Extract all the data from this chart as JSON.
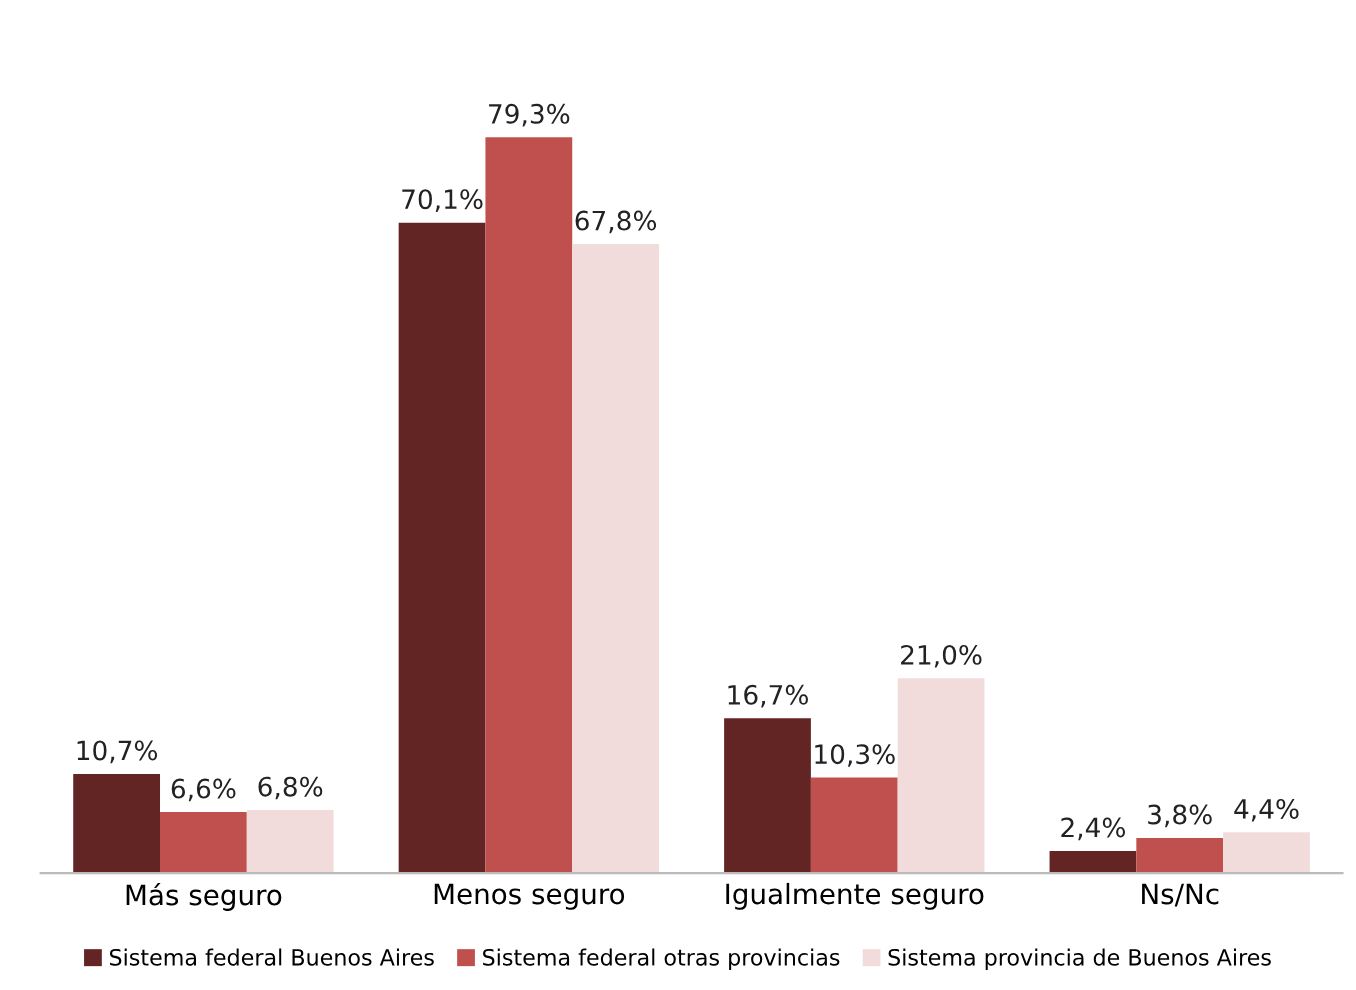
{
  "chart_data": {
    "type": "bar",
    "categories": [
      "Más seguro",
      "Menos seguro",
      "Igualmente seguro",
      "Ns/Nc"
    ],
    "series": [
      {
        "name": "Sistema federal Buenos Aires",
        "color": "#632523",
        "values": [
          10.7,
          70.1,
          16.7,
          2.4
        ],
        "value_labels": [
          "10,7%",
          "70,1%",
          "16,7%",
          "2,4%"
        ]
      },
      {
        "name": "Sistema federal otras provincias",
        "color": "#c0504d",
        "values": [
          6.6,
          79.3,
          10.3,
          3.8
        ],
        "value_labels": [
          "6,6%",
          "79,3%",
          "10,3%",
          "3,8%"
        ]
      },
      {
        "name": "Sistema provincia de Buenos Aires",
        "color": "#f2dcdb",
        "values": [
          6.8,
          67.8,
          21.0,
          4.4
        ],
        "value_labels": [
          "6,8%",
          "67,8%",
          "21,0%",
          "4,4%"
        ]
      }
    ],
    "tick_labels": "x",
    "grid": false,
    "legend": "bottom"
  }
}
